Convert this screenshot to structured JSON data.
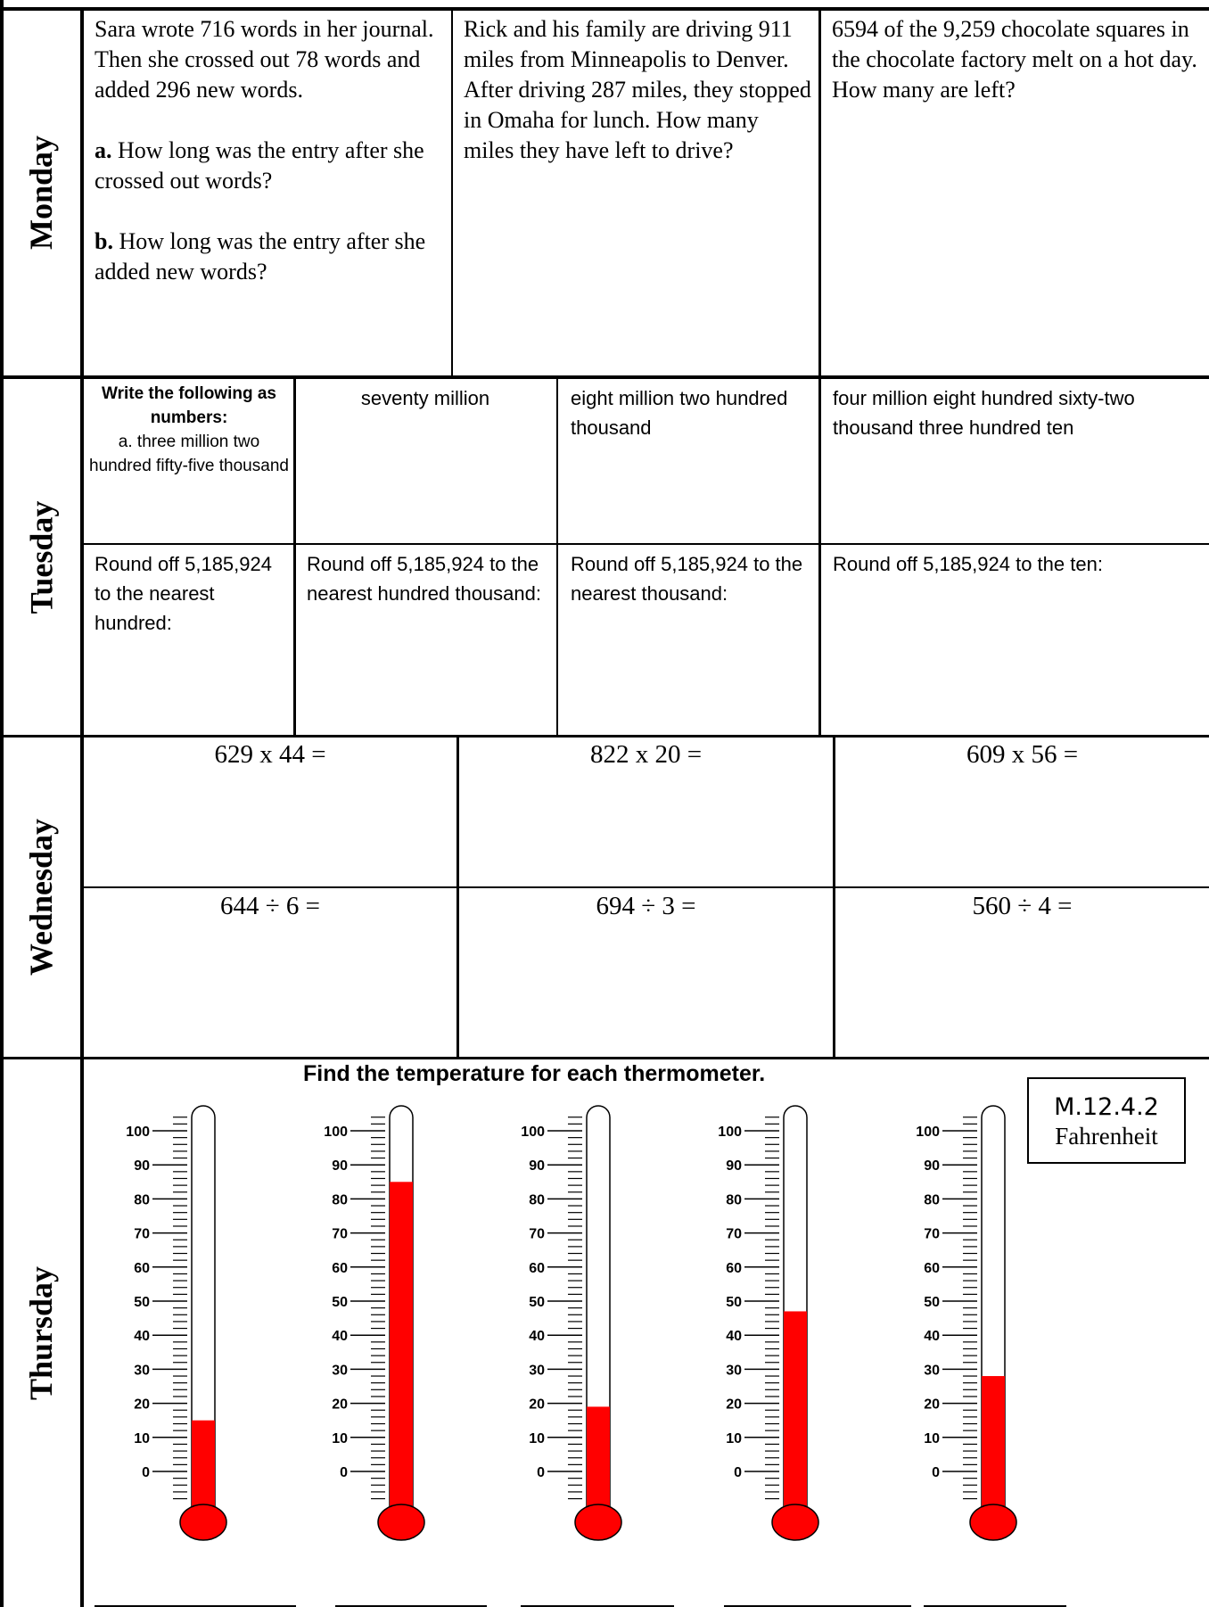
{
  "days": {
    "monday": "Monday",
    "tuesday": "Tuesday",
    "wednesday": "Wednesday",
    "thursday": "Thursday"
  },
  "monday": {
    "p1": {
      "intro": "Sara wrote 716 words in her journal. Then she crossed out 78 words and added 296 new words.",
      "a_label": "a.",
      "a_text": " How long was the entry after she crossed out words?",
      "b_label": "b.",
      "b_text": " How long was the entry after she added new words?"
    },
    "p2": "Rick and his family are driving 911 miles from Minneapolis to Denver. After driving 287 miles, they stopped in Omaha for lunch. How many miles they have left to drive?",
    "p3": "6594 of the 9,259 chocolate squares in the chocolate factory melt on a hot day. How many are left?"
  },
  "tuesday": {
    "write_heading": "Write the following as numbers:",
    "write_a": "a. three million two hundred fifty-five thousand",
    "w2": "seventy million",
    "w3": "eight million two hundred thousand",
    "w4": "four million eight hundred sixty-two thousand three hundred ten",
    "r1": "Round off 5,185,924 to the nearest hundred:",
    "r2": "Round off 5,185,924 to the nearest hundred thousand:",
    "r3": "Round off 5,185,924 to the nearest thousand:",
    "r4": "Round off 5,185,924 to the ten:"
  },
  "wednesday": {
    "m1": "629 x 44 =",
    "m2": "822 x 20 =",
    "m3": "609 x 56 =",
    "d1": "644 ÷ 6 =",
    "d2": "694 ÷ 3 =",
    "d3": "560 ÷ 4 ="
  },
  "thursday": {
    "title": "Find the temperature for each thermometer.",
    "code": "M.12.4.2",
    "unit": "Fahrenheit",
    "scale_labels": [
      "100",
      "90",
      "80",
      "70",
      "60",
      "50",
      "40",
      "30",
      "20",
      "10",
      "0"
    ],
    "fill_color": "#ff0000",
    "thermometers": [
      {
        "level": 15
      },
      {
        "level": 85
      },
      {
        "level": 19
      },
      {
        "level": 47
      },
      {
        "level": 28
      }
    ]
  }
}
